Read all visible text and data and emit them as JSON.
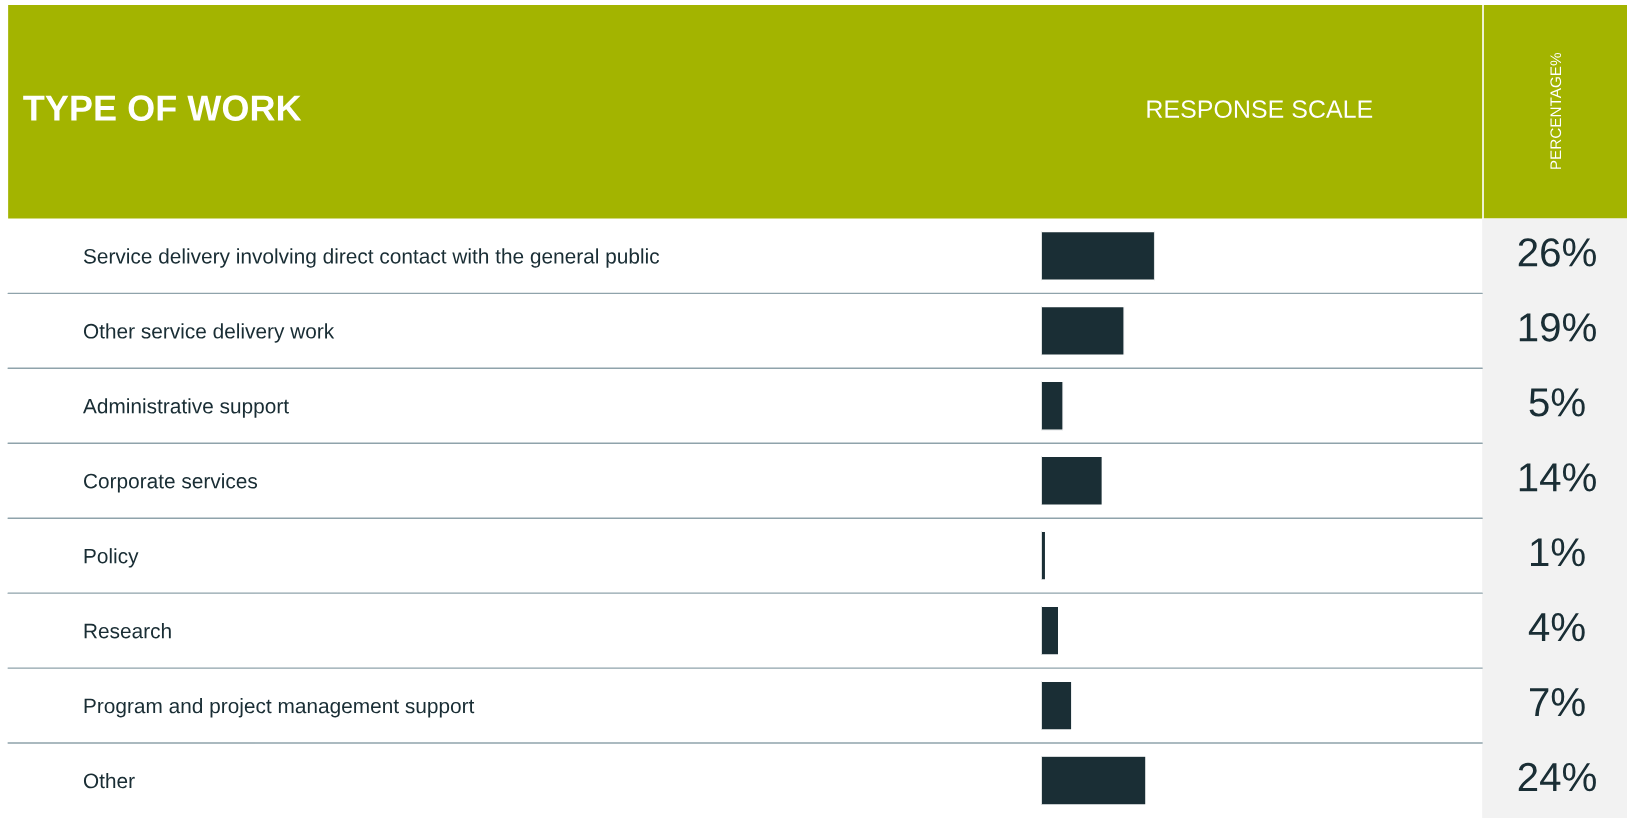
{
  "chart_data": {
    "type": "bar",
    "orientation": "horizontal",
    "title": "TYPE OF WORK",
    "xlabel": "RESPONSE SCALE",
    "annotations": [
      "PERCENTAGE%"
    ],
    "categories": [
      "Service delivery involving direct contact with the general public",
      "Other service delivery work",
      "Administrative support",
      "Corporate services",
      "Policy",
      "Research",
      "Program and project management support",
      "Other"
    ],
    "values": [
      26,
      19,
      5,
      14,
      1,
      4,
      7,
      24
    ],
    "value_labels": [
      "26%",
      "19%",
      "5%",
      "14%",
      "1%",
      "4%",
      "7%",
      "24%"
    ],
    "color": "#1a2e35",
    "tick_labels": "y",
    "grid": false,
    "legend": false
  }
}
